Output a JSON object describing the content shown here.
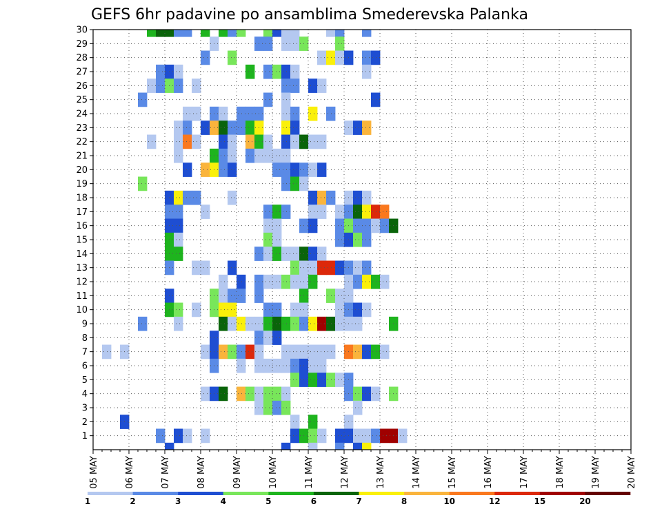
{
  "chart_data": {
    "type": "heatmap",
    "title": "GEFS 6hr padavine po ansamblima Smederevska Palanka",
    "xlabel": "",
    "ylabel": "",
    "x_tick_labels": [
      "05 MAY",
      "06 MAY",
      "07 MAY",
      "08 MAY",
      "09 MAY",
      "10 MAY",
      "11 MAY",
      "12 MAY",
      "13 MAY",
      "14 MAY",
      "15 MAY",
      "16 MAY",
      "17 MAY",
      "18 MAY",
      "19 MAY",
      "20 MAY"
    ],
    "y_tick_labels": [
      "1",
      "2",
      "3",
      "4",
      "5",
      "6",
      "7",
      "8",
      "9",
      "10",
      "11",
      "12",
      "13",
      "14",
      "15",
      "16",
      "17",
      "18",
      "19",
      "20",
      "21",
      "22",
      "23",
      "24",
      "25",
      "26",
      "27",
      "28",
      "29",
      "30"
    ],
    "time_steps_per_day": 4,
    "n_time_steps": 60,
    "n_members": 30,
    "grid": true,
    "legend": {
      "placement": "bottom",
      "levels": [
        "1",
        "2",
        "3",
        "4",
        "5",
        "6",
        "7",
        "8",
        "10",
        "12",
        "15",
        "20"
      ],
      "colors": [
        "#b4c8f0",
        "#5a8ae6",
        "#1e4ed2",
        "#78e65a",
        "#1eb41e",
        "#0a640a",
        "#faf00a",
        "#fab43c",
        "#fa781e",
        "#dc280a",
        "#a00000",
        "#640000"
      ]
    },
    "cells": [
      [
        6,
        30,
        5
      ],
      [
        7,
        30,
        6
      ],
      [
        8,
        30,
        6
      ],
      [
        9,
        30,
        2
      ],
      [
        10,
        30,
        2
      ],
      [
        12,
        30,
        5
      ],
      [
        14,
        30,
        5
      ],
      [
        15,
        30,
        2
      ],
      [
        16,
        30,
        4
      ],
      [
        19,
        30,
        4
      ],
      [
        20,
        30,
        3
      ],
      [
        21,
        30,
        1
      ],
      [
        22,
        30,
        1
      ],
      [
        26,
        30,
        1
      ],
      [
        27,
        30,
        2
      ],
      [
        30,
        30,
        2
      ],
      [
        13,
        29,
        1
      ],
      [
        18,
        29,
        2
      ],
      [
        19,
        29,
        2
      ],
      [
        21,
        29,
        1
      ],
      [
        22,
        29,
        1
      ],
      [
        23,
        29,
        4
      ],
      [
        27,
        29,
        4
      ],
      [
        12,
        28,
        2
      ],
      [
        15,
        28,
        4
      ],
      [
        25,
        28,
        1
      ],
      [
        26,
        28,
        7
      ],
      [
        27,
        28,
        1
      ],
      [
        28,
        28,
        3
      ],
      [
        30,
        28,
        2
      ],
      [
        31,
        28,
        3
      ],
      [
        7,
        27,
        2
      ],
      [
        8,
        27,
        3
      ],
      [
        9,
        27,
        1
      ],
      [
        17,
        27,
        5
      ],
      [
        19,
        27,
        2
      ],
      [
        20,
        27,
        4
      ],
      [
        21,
        27,
        3
      ],
      [
        22,
        27,
        1
      ],
      [
        30,
        27,
        1
      ],
      [
        6,
        26,
        1
      ],
      [
        7,
        26,
        2
      ],
      [
        8,
        26,
        4
      ],
      [
        9,
        26,
        2
      ],
      [
        11,
        26,
        1
      ],
      [
        21,
        26,
        2
      ],
      [
        22,
        26,
        2
      ],
      [
        24,
        26,
        3
      ],
      [
        25,
        26,
        1
      ],
      [
        5,
        25,
        2
      ],
      [
        19,
        25,
        2
      ],
      [
        21,
        25,
        1
      ],
      [
        31,
        25,
        3
      ],
      [
        10,
        24,
        1
      ],
      [
        11,
        24,
        1
      ],
      [
        13,
        24,
        2
      ],
      [
        14,
        24,
        1
      ],
      [
        16,
        24,
        2
      ],
      [
        17,
        24,
        2
      ],
      [
        18,
        24,
        2
      ],
      [
        21,
        24,
        1
      ],
      [
        22,
        24,
        2
      ],
      [
        24,
        24,
        7
      ],
      [
        26,
        24,
        2
      ],
      [
        9,
        23,
        1
      ],
      [
        10,
        23,
        2
      ],
      [
        12,
        23,
        3
      ],
      [
        13,
        23,
        8
      ],
      [
        14,
        23,
        6
      ],
      [
        15,
        23,
        2
      ],
      [
        16,
        23,
        2
      ],
      [
        17,
        23,
        5
      ],
      [
        18,
        23,
        7
      ],
      [
        21,
        23,
        7
      ],
      [
        22,
        23,
        3
      ],
      [
        28,
        23,
        1
      ],
      [
        29,
        23,
        3
      ],
      [
        30,
        23,
        8
      ],
      [
        6,
        22,
        1
      ],
      [
        9,
        22,
        1
      ],
      [
        10,
        22,
        9
      ],
      [
        11,
        22,
        1
      ],
      [
        14,
        22,
        3
      ],
      [
        15,
        22,
        1
      ],
      [
        17,
        22,
        8
      ],
      [
        18,
        22,
        5
      ],
      [
        19,
        22,
        1
      ],
      [
        21,
        22,
        3
      ],
      [
        22,
        22,
        1
      ],
      [
        23,
        22,
        6
      ],
      [
        24,
        22,
        1
      ],
      [
        25,
        22,
        1
      ],
      [
        9,
        21,
        1
      ],
      [
        13,
        21,
        5
      ],
      [
        14,
        21,
        2
      ],
      [
        15,
        21,
        1
      ],
      [
        17,
        21,
        2
      ],
      [
        18,
        21,
        1
      ],
      [
        19,
        21,
        1
      ],
      [
        20,
        21,
        1
      ],
      [
        21,
        21,
        1
      ],
      [
        10,
        20,
        3
      ],
      [
        12,
        20,
        8
      ],
      [
        13,
        20,
        7
      ],
      [
        14,
        20,
        2
      ],
      [
        15,
        20,
        3
      ],
      [
        20,
        20,
        2
      ],
      [
        21,
        20,
        2
      ],
      [
        22,
        20,
        3
      ],
      [
        23,
        20,
        2
      ],
      [
        24,
        20,
        1
      ],
      [
        25,
        20,
        3
      ],
      [
        5,
        19,
        4
      ],
      [
        21,
        19,
        2
      ],
      [
        22,
        19,
        5
      ],
      [
        23,
        19,
        1
      ],
      [
        8,
        18,
        3
      ],
      [
        9,
        18,
        7
      ],
      [
        10,
        18,
        2
      ],
      [
        11,
        18,
        2
      ],
      [
        15,
        18,
        1
      ],
      [
        24,
        18,
        3
      ],
      [
        25,
        18,
        8
      ],
      [
        26,
        18,
        2
      ],
      [
        28,
        18,
        1
      ],
      [
        29,
        18,
        3
      ],
      [
        30,
        18,
        1
      ],
      [
        8,
        17,
        2
      ],
      [
        9,
        17,
        2
      ],
      [
        12,
        17,
        1
      ],
      [
        19,
        17,
        2
      ],
      [
        20,
        17,
        5
      ],
      [
        21,
        17,
        2
      ],
      [
        24,
        17,
        1
      ],
      [
        25,
        17,
        1
      ],
      [
        27,
        17,
        1
      ],
      [
        28,
        17,
        2
      ],
      [
        29,
        17,
        6
      ],
      [
        30,
        17,
        7
      ],
      [
        31,
        17,
        10
      ],
      [
        32,
        17,
        9
      ],
      [
        8,
        16,
        3
      ],
      [
        9,
        16,
        3
      ],
      [
        19,
        16,
        1
      ],
      [
        20,
        16,
        1
      ],
      [
        23,
        16,
        2
      ],
      [
        24,
        16,
        3
      ],
      [
        27,
        16,
        2
      ],
      [
        28,
        16,
        4
      ],
      [
        29,
        16,
        2
      ],
      [
        30,
        16,
        2
      ],
      [
        31,
        16,
        1
      ],
      [
        32,
        16,
        2
      ],
      [
        33,
        16,
        6
      ],
      [
        8,
        15,
        5
      ],
      [
        9,
        15,
        1
      ],
      [
        19,
        15,
        4
      ],
      [
        20,
        15,
        1
      ],
      [
        27,
        15,
        2
      ],
      [
        28,
        15,
        3
      ],
      [
        29,
        15,
        4
      ],
      [
        30,
        15,
        2
      ],
      [
        8,
        14,
        5
      ],
      [
        9,
        14,
        5
      ],
      [
        18,
        14,
        2
      ],
      [
        19,
        14,
        1
      ],
      [
        20,
        14,
        5
      ],
      [
        21,
        14,
        1
      ],
      [
        22,
        14,
        1
      ],
      [
        23,
        14,
        6
      ],
      [
        24,
        14,
        3
      ],
      [
        25,
        14,
        1
      ],
      [
        8,
        13,
        2
      ],
      [
        11,
        13,
        1
      ],
      [
        12,
        13,
        1
      ],
      [
        15,
        13,
        3
      ],
      [
        22,
        13,
        4
      ],
      [
        23,
        13,
        1
      ],
      [
        24,
        13,
        1
      ],
      [
        25,
        13,
        10
      ],
      [
        26,
        13,
        10
      ],
      [
        27,
        13,
        3
      ],
      [
        28,
        13,
        2
      ],
      [
        29,
        13,
        1
      ],
      [
        30,
        13,
        2
      ],
      [
        14,
        12,
        1
      ],
      [
        16,
        12,
        3
      ],
      [
        18,
        12,
        2
      ],
      [
        19,
        12,
        1
      ],
      [
        20,
        12,
        1
      ],
      [
        21,
        12,
        4
      ],
      [
        22,
        12,
        1
      ],
      [
        23,
        12,
        1
      ],
      [
        24,
        12,
        5
      ],
      [
        28,
        12,
        1
      ],
      [
        29,
        12,
        2
      ],
      [
        30,
        12,
        7
      ],
      [
        31,
        12,
        5
      ],
      [
        32,
        12,
        1
      ],
      [
        8,
        11,
        3
      ],
      [
        13,
        11,
        4
      ],
      [
        14,
        11,
        1
      ],
      [
        15,
        11,
        2
      ],
      [
        16,
        11,
        2
      ],
      [
        18,
        11,
        2
      ],
      [
        23,
        11,
        5
      ],
      [
        26,
        11,
        4
      ],
      [
        27,
        11,
        1
      ],
      [
        28,
        11,
        1
      ],
      [
        8,
        10,
        5
      ],
      [
        9,
        10,
        4
      ],
      [
        11,
        10,
        1
      ],
      [
        13,
        10,
        4
      ],
      [
        14,
        10,
        7
      ],
      [
        15,
        10,
        7
      ],
      [
        19,
        10,
        2
      ],
      [
        20,
        10,
        2
      ],
      [
        22,
        10,
        1
      ],
      [
        23,
        10,
        1
      ],
      [
        27,
        10,
        1
      ],
      [
        28,
        10,
        2
      ],
      [
        29,
        10,
        3
      ],
      [
        30,
        10,
        1
      ],
      [
        5,
        9,
        2
      ],
      [
        9,
        9,
        1
      ],
      [
        14,
        9,
        6
      ],
      [
        15,
        9,
        1
      ],
      [
        16,
        9,
        7
      ],
      [
        17,
        9,
        1
      ],
      [
        18,
        9,
        1
      ],
      [
        19,
        9,
        5
      ],
      [
        20,
        9,
        6
      ],
      [
        21,
        9,
        5
      ],
      [
        22,
        9,
        4
      ],
      [
        23,
        9,
        2
      ],
      [
        24,
        9,
        7
      ],
      [
        25,
        9,
        11
      ],
      [
        26,
        9,
        6
      ],
      [
        27,
        9,
        1
      ],
      [
        28,
        9,
        1
      ],
      [
        29,
        9,
        1
      ],
      [
        33,
        9,
        5
      ],
      [
        13,
        8,
        3
      ],
      [
        18,
        8,
        2
      ],
      [
        19,
        8,
        1
      ],
      [
        20,
        8,
        3
      ],
      [
        1,
        7,
        1
      ],
      [
        3,
        7,
        1
      ],
      [
        12,
        7,
        1
      ],
      [
        13,
        7,
        3
      ],
      [
        14,
        7,
        8
      ],
      [
        15,
        7,
        4
      ],
      [
        16,
        7,
        2
      ],
      [
        17,
        7,
        10
      ],
      [
        18,
        7,
        1
      ],
      [
        21,
        7,
        1
      ],
      [
        22,
        7,
        1
      ],
      [
        23,
        7,
        1
      ],
      [
        24,
        7,
        1
      ],
      [
        25,
        7,
        1
      ],
      [
        26,
        7,
        1
      ],
      [
        28,
        7,
        9
      ],
      [
        29,
        7,
        8
      ],
      [
        30,
        7,
        3
      ],
      [
        31,
        7,
        5
      ],
      [
        32,
        7,
        1
      ],
      [
        13,
        6,
        2
      ],
      [
        16,
        6,
        1
      ],
      [
        18,
        6,
        1
      ],
      [
        19,
        6,
        1
      ],
      [
        20,
        6,
        1
      ],
      [
        21,
        6,
        1
      ],
      [
        22,
        6,
        2
      ],
      [
        23,
        6,
        3
      ],
      [
        24,
        6,
        1
      ],
      [
        25,
        6,
        1
      ],
      [
        22,
        5,
        4
      ],
      [
        23,
        5,
        3
      ],
      [
        24,
        5,
        5
      ],
      [
        25,
        5,
        3
      ],
      [
        26,
        5,
        4
      ],
      [
        27,
        5,
        1
      ],
      [
        28,
        5,
        2
      ],
      [
        12,
        4,
        1
      ],
      [
        13,
        4,
        3
      ],
      [
        14,
        4,
        6
      ],
      [
        16,
        4,
        8
      ],
      [
        17,
        4,
        4
      ],
      [
        18,
        4,
        1
      ],
      [
        19,
        4,
        4
      ],
      [
        20,
        4,
        4
      ],
      [
        21,
        4,
        1
      ],
      [
        28,
        4,
        2
      ],
      [
        29,
        4,
        4
      ],
      [
        30,
        4,
        3
      ],
      [
        31,
        4,
        1
      ],
      [
        33,
        4,
        4
      ],
      [
        18,
        3,
        1
      ],
      [
        19,
        3,
        4
      ],
      [
        20,
        3,
        2
      ],
      [
        21,
        3,
        4
      ],
      [
        29,
        3,
        1
      ],
      [
        3,
        2,
        3
      ],
      [
        22,
        2,
        1
      ],
      [
        24,
        2,
        5
      ],
      [
        28,
        2,
        1
      ],
      [
        7,
        1,
        2
      ],
      [
        9,
        1,
        3
      ],
      [
        10,
        1,
        1
      ],
      [
        12,
        1,
        1
      ],
      [
        22,
        1,
        3
      ],
      [
        23,
        1,
        5
      ],
      [
        24,
        1,
        4
      ],
      [
        25,
        1,
        1
      ],
      [
        27,
        1,
        3
      ],
      [
        28,
        1,
        3
      ],
      [
        29,
        1,
        1
      ],
      [
        30,
        1,
        1
      ],
      [
        31,
        1,
        2
      ],
      [
        32,
        1,
        11
      ],
      [
        33,
        1,
        11
      ],
      [
        34,
        1,
        1
      ],
      [
        8,
        0,
        3
      ],
      [
        21,
        0,
        3
      ],
      [
        24,
        0,
        1
      ],
      [
        27,
        0,
        2
      ],
      [
        29,
        0,
        3
      ],
      [
        30,
        0,
        7
      ]
    ]
  }
}
